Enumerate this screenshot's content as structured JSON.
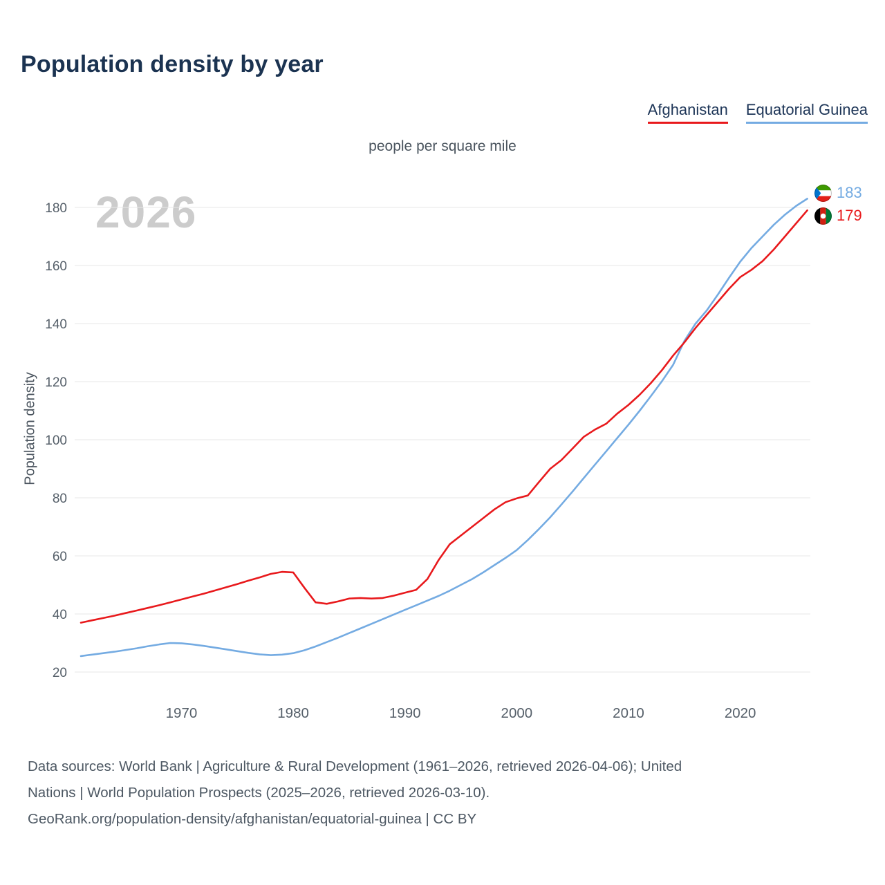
{
  "page": {
    "title": "Population density by year"
  },
  "legend": {
    "items": [
      {
        "label": "Afghanistan",
        "color": "#E8191C"
      },
      {
        "label": "Equatorial Guinea",
        "color": "#74ABE2"
      }
    ]
  },
  "chart_data": {
    "type": "line",
    "title": "Population density by year",
    "subtitle": "people per square mile",
    "ylabel": "Population density",
    "xlabel": "",
    "watermark": "2026",
    "grid": "horizontal",
    "legend_position": "top-right",
    "x_range": [
      1961,
      2026
    ],
    "ylim": [
      20,
      180
    ],
    "yticks": [
      20,
      40,
      60,
      80,
      100,
      120,
      140,
      160,
      180
    ],
    "xticks": [
      1970,
      1980,
      1990,
      2000,
      2010,
      2020
    ],
    "years": [
      1961,
      1962,
      1963,
      1964,
      1965,
      1966,
      1967,
      1968,
      1969,
      1970,
      1971,
      1972,
      1973,
      1974,
      1975,
      1976,
      1977,
      1978,
      1979,
      1980,
      1981,
      1982,
      1983,
      1984,
      1985,
      1986,
      1987,
      1988,
      1989,
      1990,
      1991,
      1992,
      1993,
      1994,
      1995,
      1996,
      1997,
      1998,
      1999,
      2000,
      2001,
      2002,
      2003,
      2004,
      2005,
      2006,
      2007,
      2008,
      2009,
      2010,
      2011,
      2012,
      2013,
      2014,
      2015,
      2016,
      2017,
      2018,
      2019,
      2020,
      2021,
      2022,
      2023,
      2024,
      2025,
      2026
    ],
    "series": [
      {
        "name": "Afghanistan",
        "color": "#E8191C",
        "values": [
          37.0,
          37.8,
          38.6,
          39.4,
          40.3,
          41.2,
          42.1,
          43.0,
          44.0,
          45.0,
          46.0,
          47.0,
          48.1,
          49.2,
          50.3,
          51.5,
          52.6,
          53.8,
          54.5,
          54.3,
          49.0,
          44.0,
          43.5,
          44.3,
          45.3,
          45.5,
          45.3,
          45.5,
          46.3,
          47.3,
          48.3,
          52.0,
          58.5,
          64.0,
          67.0,
          70.0,
          73.0,
          76.0,
          78.5,
          79.8,
          80.8,
          85.5,
          90.0,
          93.0,
          97.0,
          101.0,
          103.5,
          105.5,
          109.0,
          112.0,
          115.5,
          119.5,
          124.0,
          129.0,
          133.5,
          138.5,
          143.0,
          147.5,
          152.0,
          156.0,
          158.5,
          161.5,
          165.5,
          170.0,
          174.5,
          179.0
        ]
      },
      {
        "name": "Equatorial Guinea",
        "color": "#74ABE2",
        "values": [
          25.5,
          26.0,
          26.5,
          27.0,
          27.6,
          28.2,
          28.9,
          29.5,
          30.0,
          29.9,
          29.5,
          29.0,
          28.4,
          27.8,
          27.2,
          26.6,
          26.1,
          25.8,
          26.0,
          26.5,
          27.5,
          28.8,
          30.3,
          31.8,
          33.4,
          35.0,
          36.6,
          38.2,
          39.8,
          41.4,
          43.0,
          44.6,
          46.2,
          48.0,
          50.0,
          52.0,
          54.3,
          56.8,
          59.3,
          62.0,
          65.5,
          69.3,
          73.3,
          77.7,
          82.2,
          86.8,
          91.4,
          96.0,
          100.6,
          105.2,
          110.0,
          115.0,
          120.2,
          125.8,
          134.0,
          140.0,
          144.5,
          150.0,
          155.8,
          161.3,
          166.0,
          170.0,
          174.0,
          177.5,
          180.5,
          183.0
        ]
      }
    ],
    "end_labels": [
      {
        "series": "Equatorial Guinea",
        "value": 183,
        "color": "#74ABE2"
      },
      {
        "series": "Afghanistan",
        "value": 179,
        "color": "#E8191C"
      }
    ]
  },
  "footer": {
    "lines": [
      "Data sources: World Bank | Agriculture & Rural Development (1961–2026, retrieved 2026-04-06); United",
      "Nations | World Population Prospects (2025–2026, retrieved 2026-03-10).",
      "GeoRank.org/population-density/afghanistan/equatorial-guinea | CC BY"
    ]
  }
}
